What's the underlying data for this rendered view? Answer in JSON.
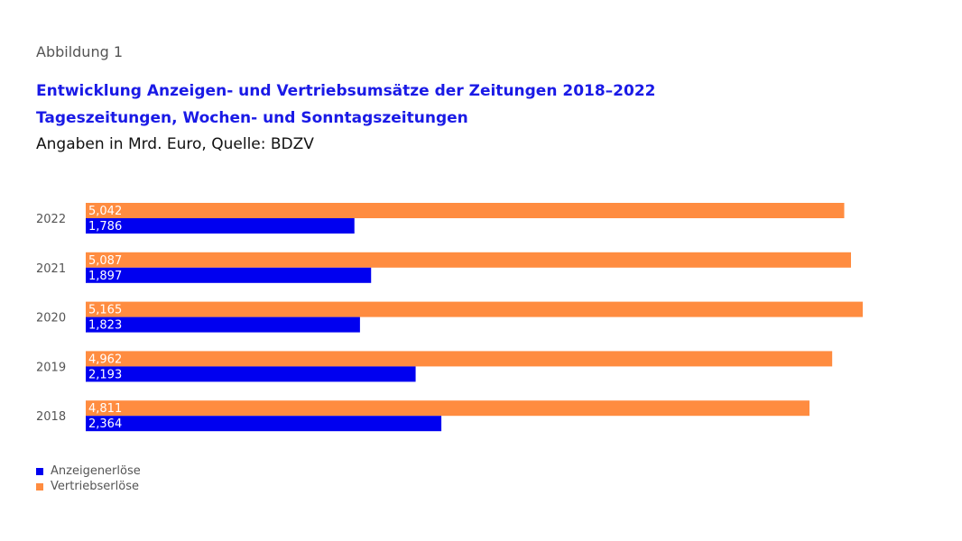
{
  "figure_label": "Abbildung 1",
  "chart_data": {
    "type": "bar",
    "orientation": "horizontal",
    "title": "Entwicklung Anzeigen- und Vertriebsumsätze der Zeitungen 2018–2022",
    "subtitle": "Tageszeitungen, Wochen- und Sonntagszeitungen",
    "note": "Angaben in Mrd. Euro, Quelle: BDZV",
    "categories": [
      "2022",
      "2021",
      "2020",
      "2019",
      "2018"
    ],
    "series": [
      {
        "name": "Vertriebserlöse",
        "color": "#FF8C40",
        "values": [
          5.042,
          5.087,
          5.165,
          4.962,
          4.811
        ],
        "labels": [
          "5,042",
          "5,087",
          "5,165",
          "4,962",
          "4,811"
        ]
      },
      {
        "name": "Anzeigenerlöse",
        "color": "#0000F0",
        "values": [
          1.786,
          1.897,
          1.823,
          2.193,
          2.364
        ],
        "labels": [
          "1,786",
          "1,897",
          "1,823",
          "2,193",
          "2,364"
        ]
      }
    ],
    "xlim": [
      0,
      5.165
    ],
    "grid": false,
    "legend": {
      "placement": "bottom-left",
      "items": [
        "Anzeigenerlöse",
        "Vertriebserlöse"
      ]
    }
  }
}
